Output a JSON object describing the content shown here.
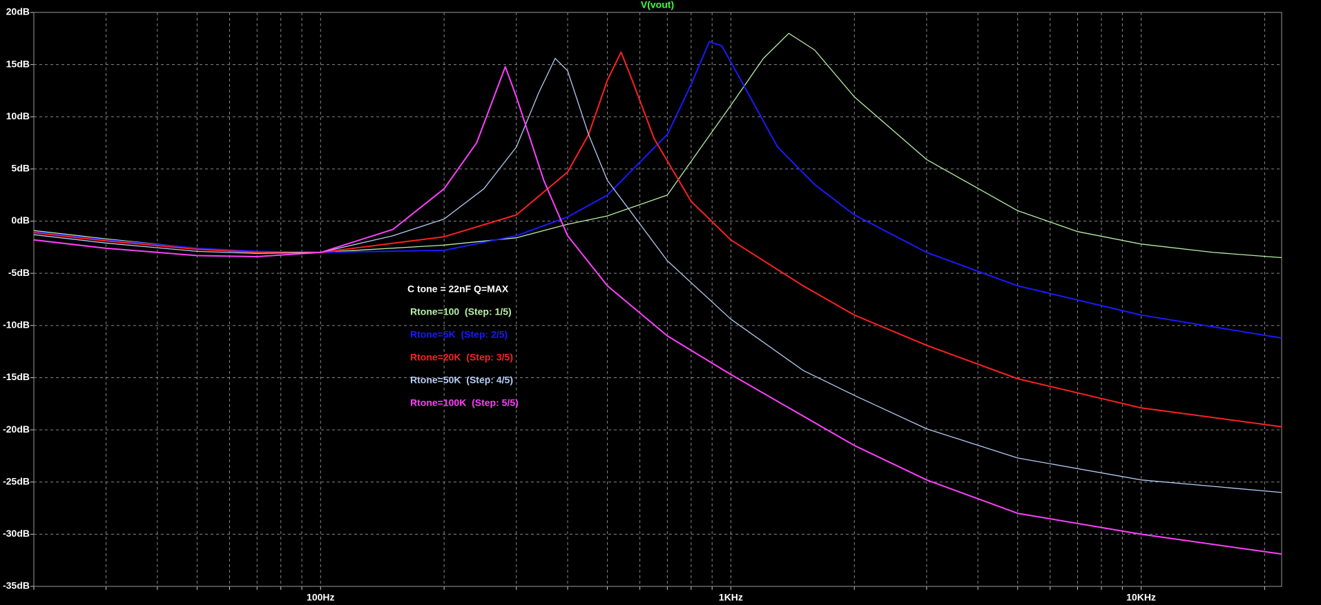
{
  "chart_data": {
    "type": "line",
    "title": "V(vout)",
    "log_x": true,
    "grid": true,
    "background": "#000000",
    "annotation": "C tone = 22nF Q=MAX",
    "xlim": [
      20,
      22000
    ],
    "ylim": [
      -35,
      20
    ],
    "xticks": [
      {
        "value": 20,
        "label": null
      },
      {
        "value": 30,
        "label": null
      },
      {
        "value": 40,
        "label": null
      },
      {
        "value": 50,
        "label": null
      },
      {
        "value": 60,
        "label": null
      },
      {
        "value": 70,
        "label": null
      },
      {
        "value": 80,
        "label": null
      },
      {
        "value": 90,
        "label": null
      },
      {
        "value": 100,
        "label": "100Hz"
      },
      {
        "value": 200,
        "label": null
      },
      {
        "value": 300,
        "label": null
      },
      {
        "value": 400,
        "label": null
      },
      {
        "value": 500,
        "label": null
      },
      {
        "value": 600,
        "label": null
      },
      {
        "value": 700,
        "label": null
      },
      {
        "value": 800,
        "label": null
      },
      {
        "value": 900,
        "label": null
      },
      {
        "value": 1000,
        "label": "1KHz"
      },
      {
        "value": 2000,
        "label": null
      },
      {
        "value": 3000,
        "label": null
      },
      {
        "value": 4000,
        "label": null
      },
      {
        "value": 5000,
        "label": null
      },
      {
        "value": 6000,
        "label": null
      },
      {
        "value": 7000,
        "label": null
      },
      {
        "value": 8000,
        "label": null
      },
      {
        "value": 9000,
        "label": null
      },
      {
        "value": 10000,
        "label": "10KHz"
      },
      {
        "value": 20000,
        "label": null
      }
    ],
    "yticks": [
      {
        "value": 20,
        "label": "20dB"
      },
      {
        "value": 15,
        "label": "15dB"
      },
      {
        "value": 10,
        "label": "10dB"
      },
      {
        "value": 5,
        "label": "5dB"
      },
      {
        "value": 0,
        "label": "0dB"
      },
      {
        "value": -5,
        "label": "-5dB"
      },
      {
        "value": -10,
        "label": "-10dB"
      },
      {
        "value": -15,
        "label": "-15dB"
      },
      {
        "value": -20,
        "label": "-20dB"
      },
      {
        "value": -25,
        "label": "-25dB"
      },
      {
        "value": -30,
        "label": "-30dB"
      },
      {
        "value": -35,
        "label": "-35dB"
      }
    ],
    "series": [
      {
        "name": "Rtone=100  (Step: 1/5)",
        "color": "#b8f0a8",
        "x": [
          20,
          30,
          50,
          70,
          100,
          200,
          300,
          400,
          500,
          700,
          1000,
          1200,
          1384,
          1600,
          2000,
          3000,
          5000,
          7000,
          10000,
          15000,
          22000
        ],
        "values": [
          -0.9,
          -1.7,
          -2.6,
          -2.9,
          -3.0,
          -2.3,
          -1.6,
          -0.3,
          0.5,
          2.5,
          11.1,
          15.6,
          18.0,
          16.4,
          11.9,
          5.9,
          1.0,
          -1.0,
          -2.2,
          -3.0,
          -3.5
        ]
      },
      {
        "name": "Rtone=5K  (Step: 2/5)",
        "color": "#1a1aff",
        "x": [
          20,
          30,
          50,
          70,
          100,
          200,
          300,
          400,
          500,
          700,
          800,
          886,
          950,
          1100,
          1300,
          1600,
          2000,
          3000,
          5000,
          10000,
          22000
        ],
        "values": [
          -1.0,
          -1.8,
          -2.6,
          -2.9,
          -3.0,
          -2.8,
          -1.4,
          0.4,
          2.5,
          8.3,
          13.1,
          17.2,
          16.8,
          12.3,
          7.1,
          3.5,
          0.6,
          -3.0,
          -6.2,
          -9.0,
          -11.2
        ]
      },
      {
        "name": "Rtone=20K  (Step: 3/5)",
        "color": "#ff2020",
        "x": [
          20,
          30,
          50,
          70,
          100,
          200,
          300,
          400,
          450,
          500,
          540,
          580,
          650,
          800,
          1000,
          1500,
          2000,
          3000,
          5000,
          10000,
          22000
        ],
        "values": [
          -1.1,
          -1.9,
          -2.7,
          -3.0,
          -3.0,
          -1.5,
          0.6,
          4.7,
          8.3,
          13.5,
          16.2,
          13.1,
          7.9,
          1.9,
          -1.8,
          -6.2,
          -9.0,
          -11.9,
          -15.1,
          -17.9,
          -19.7
        ]
      },
      {
        "name": "Rtone=50K  (Step: 4/5)",
        "color": "#b4ccf4",
        "x": [
          20,
          30,
          50,
          70,
          100,
          150,
          200,
          250,
          300,
          340,
          373,
          400,
          450,
          500,
          700,
          1000,
          1500,
          2000,
          3000,
          5000,
          10000,
          22000
        ],
        "values": [
          -1.3,
          -2.1,
          -2.9,
          -3.1,
          -3.0,
          -1.4,
          0.2,
          3.1,
          7.1,
          12.3,
          15.6,
          14.4,
          8.3,
          3.9,
          -3.8,
          -9.4,
          -14.3,
          -16.7,
          -19.9,
          -22.7,
          -24.8,
          -26.0
        ]
      },
      {
        "name": "Rtone=100K  (Step: 5/5)",
        "color": "#ff40ff",
        "x": [
          20,
          30,
          50,
          70,
          100,
          150,
          200,
          240,
          282,
          300,
          350,
          400,
          500,
          700,
          1000,
          2000,
          3000,
          5000,
          10000,
          22000
        ],
        "values": [
          -1.8,
          -2.6,
          -3.3,
          -3.4,
          -3.0,
          -0.8,
          3.1,
          7.5,
          14.8,
          11.9,
          3.9,
          -1.4,
          -6.2,
          -11.0,
          -14.7,
          -21.5,
          -24.8,
          -28.0,
          -30.0,
          -31.9
        ]
      }
    ]
  }
}
